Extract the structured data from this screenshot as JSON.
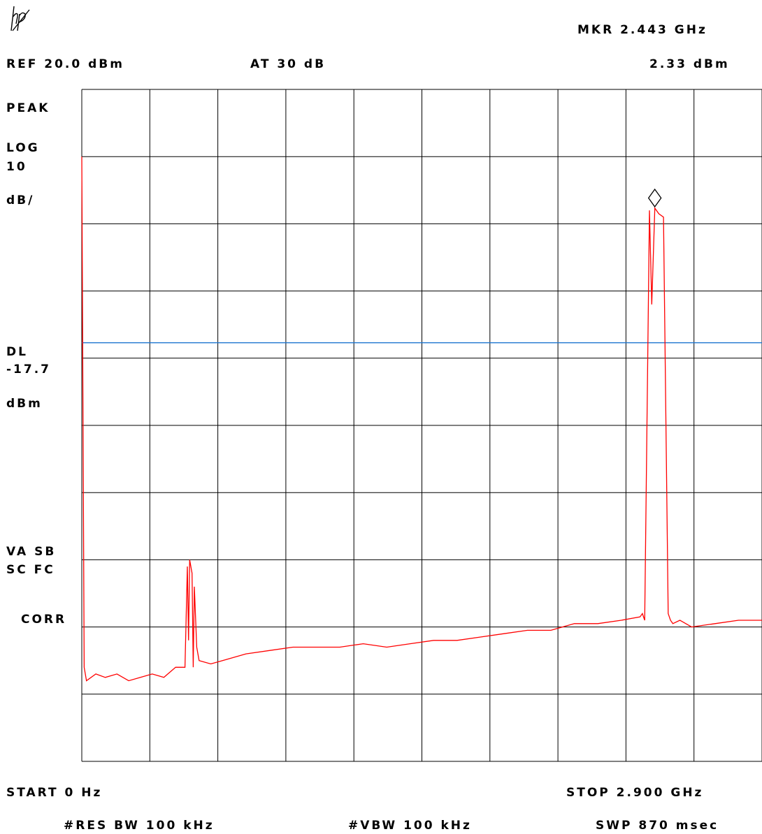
{
  "header": {
    "marker_label": "MKR 2.443 GHz",
    "reference_level": "REF 20.0 dBm",
    "attenuation": "AT 30 dB",
    "marker_value": "2.33 dBm"
  },
  "side_labels": {
    "detector": "PEAK",
    "scale_line1": "LOG",
    "scale_line2": "10",
    "scale_line3": "dB/",
    "display_line_title": "DL",
    "display_line_value": "-17.7",
    "display_line_unit": "dBm",
    "flags_line1": "VA SB",
    "flags_line2": "SC FC",
    "correction": "CORR"
  },
  "footer": {
    "start": "START 0 Hz",
    "stop": "STOP 2.900 GHz",
    "res_bw": "#RES BW 100 kHz",
    "vbw": "#VBW 100 kHz",
    "sweep": "SWP 870 msec"
  },
  "colors": {
    "trace": "#ff0000",
    "display_line": "#1f77d0",
    "grid": "#000000",
    "background": "#ffffff"
  },
  "icons": {
    "logo": "hp-logo-icon",
    "marker": "diamond-marker-icon"
  },
  "chart_data": {
    "type": "line",
    "x_unit": "GHz",
    "y_unit": "dBm",
    "xlim": [
      0,
      2.9
    ],
    "ylim": [
      -80,
      20
    ],
    "grid": true,
    "x_divisions": 10,
    "y_divisions": 10,
    "reference_level_dbm": 20.0,
    "scale_db_per_div": 10,
    "display_line_dbm": -17.7,
    "marker": {
      "x": 2.443,
      "y": 2.33
    },
    "series": [
      {
        "x": [
          0,
          0.01,
          0.02,
          0.06,
          0.1,
          0.15,
          0.2,
          0.25,
          0.3,
          0.35,
          0.4,
          0.44,
          0.45,
          0.455,
          0.46,
          0.47,
          0.475,
          0.48,
          0.49,
          0.5,
          0.55,
          0.6,
          0.7,
          0.8,
          0.9,
          1.0,
          1.1,
          1.2,
          1.3,
          1.4,
          1.5,
          1.6,
          1.7,
          1.8,
          1.9,
          2.0,
          2.1,
          2.2,
          2.3,
          2.38,
          2.39,
          2.4,
          2.42,
          2.43,
          2.443,
          2.46,
          2.48,
          2.5,
          2.51,
          2.52,
          2.55,
          2.6,
          2.7,
          2.8,
          2.9
        ],
        "y": [
          10.0,
          -66,
          -68,
          -67,
          -67.5,
          -67,
          -68,
          -67.5,
          -67,
          -67.5,
          -66,
          -66,
          -51,
          -62,
          -50,
          -52,
          -66,
          -54,
          -63,
          -65,
          -65.5,
          -65,
          -64,
          -63.5,
          -63,
          -63,
          -63,
          -62.5,
          -63,
          -62.5,
          -62,
          -62,
          -61.5,
          -61,
          -60.5,
          -60.5,
          -59.5,
          -59.5,
          -59,
          -58.5,
          -58,
          -59,
          2.0,
          -12,
          2.33,
          1.5,
          1.0,
          -58,
          -59,
          -59.5,
          -59,
          -60,
          -59.5,
          -59,
          -59
        ]
      }
    ]
  }
}
